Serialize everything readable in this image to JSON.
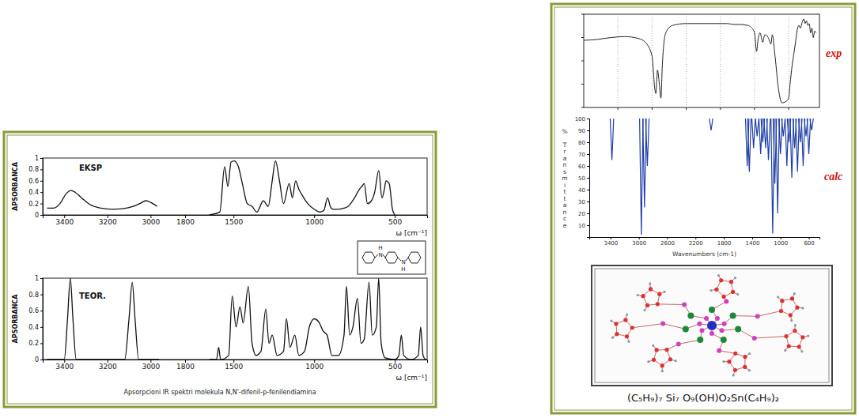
{
  "chart_data": [
    {
      "type": "line",
      "title": "EKSP",
      "x_label": "ω [cm⁻¹]",
      "y_label": "APSORBANCA",
      "xlim": [
        3500,
        300
      ],
      "xbreak": [
        2950,
        1800
      ],
      "xticks": [
        3400,
        3200,
        3000,
        1800,
        1500,
        1000,
        500
      ],
      "ylim": [
        0,
        1
      ],
      "yticks": [
        0,
        0.2,
        0.4,
        0.6,
        0.8,
        1
      ],
      "color": "#111111",
      "x": [
        3480,
        3450,
        3420,
        3390,
        3370,
        3350,
        3320,
        3280,
        3230,
        3180,
        3130,
        3080,
        3050,
        3020,
        3000,
        2970,
        2400,
        1650,
        1585,
        1555,
        1535,
        1515,
        1495,
        1470,
        1445,
        1415,
        1385,
        1355,
        1315,
        1285,
        1260,
        1240,
        1215,
        1190,
        1155,
        1135,
        1115,
        1095,
        1075,
        1040,
        1000,
        965,
        940,
        917,
        900,
        885,
        850,
        815,
        790,
        750,
        720,
        705,
        690,
        670,
        645,
        625,
        600,
        580,
        565,
        555,
        535,
        515,
        500
      ],
      "values": [
        0.12,
        0.12,
        0.2,
        0.38,
        0.43,
        0.4,
        0.3,
        0.18,
        0.12,
        0.1,
        0.11,
        0.15,
        0.2,
        0.25,
        0.22,
        0.15,
        null,
        0,
        0.05,
        0.85,
        0.5,
        0.93,
        0.95,
        0.85,
        0.55,
        0.2,
        0.15,
        0.05,
        0.25,
        0.15,
        0.6,
        0.95,
        0.6,
        0.2,
        0.55,
        0.3,
        0.6,
        0.45,
        0.35,
        0.2,
        0.1,
        0.05,
        0.08,
        0.3,
        0.15,
        0.1,
        0.1,
        0.12,
        0.15,
        0.3,
        0.45,
        0.5,
        0.55,
        0.2,
        0.25,
        0.4,
        0.78,
        0.3,
        0.45,
        0.6,
        0.55,
        0.1,
        0
      ]
    },
    {
      "type": "line",
      "title": "TEOR.",
      "x_label": "ω [cm⁻¹]",
      "y_label": "APSORBANCA",
      "xlim": [
        3500,
        300
      ],
      "xbreak": [
        2950,
        1800
      ],
      "xticks": [
        3400,
        3200,
        3000,
        1800,
        1500,
        1000,
        500
      ],
      "ylim": [
        0,
        1
      ],
      "yticks": [
        0,
        0.2,
        0.4,
        0.6,
        0.8,
        1
      ],
      "color": "#111111",
      "x": [
        3480,
        3400,
        3385,
        3372,
        3360,
        3345,
        3120,
        3100,
        3085,
        3072,
        3055,
        2960,
        2400,
        1650,
        1605,
        1592,
        1580,
        1530,
        1508,
        1484,
        1460,
        1440,
        1408,
        1385,
        1360,
        1330,
        1300,
        1280,
        1260,
        1230,
        1190,
        1172,
        1150,
        1120,
        1095,
        1060,
        1030,
        1000,
        968,
        945,
        920,
        890,
        850,
        815,
        800,
        780,
        760,
        732,
        710,
        690,
        660,
        640,
        615,
        600,
        585,
        560,
        500,
        475,
        460,
        445,
        400,
        355,
        340,
        325,
        310
      ],
      "values": [
        0,
        0,
        0.5,
        1,
        0.5,
        0,
        0,
        0.5,
        0.95,
        0.5,
        0,
        0,
        null,
        0,
        0,
        0.15,
        0,
        0.05,
        0.78,
        0.4,
        0.65,
        0.45,
        0.9,
        0.2,
        0.05,
        0.1,
        0.62,
        0.2,
        0.3,
        0.05,
        0.1,
        0.5,
        0.15,
        0.3,
        0.05,
        0.1,
        0.4,
        0.5,
        0.45,
        0.35,
        0.3,
        0.05,
        0.05,
        0.3,
        0.9,
        0.3,
        0.4,
        0.75,
        0.2,
        0.25,
        0.95,
        0.3,
        0.4,
        1,
        0.2,
        0.02,
        0,
        0.05,
        0.3,
        0.05,
        0,
        0.05,
        0.4,
        0.05,
        0
      ]
    },
    {
      "type": "line",
      "title": "exp",
      "xlim": [
        4000,
        550
      ],
      "xticks": [
        3500,
        3000,
        2500,
        2000,
        1500,
        1000
      ],
      "ylim": [
        0,
        100
      ],
      "yticks": [
        0,
        25,
        50,
        75,
        100
      ],
      "grid": true,
      "tick_labels": false,
      "color": "#222222",
      "x": [
        4000,
        3800,
        3600,
        3400,
        3200,
        3100,
        3000,
        2960,
        2945,
        2920,
        2900,
        2870,
        2850,
        2800,
        2700,
        2500,
        2200,
        2000,
        1900,
        1800,
        1700,
        1600,
        1550,
        1500,
        1470,
        1450,
        1420,
        1380,
        1350,
        1300,
        1260,
        1240,
        1200,
        1150,
        1120,
        1100,
        1050,
        1000,
        980,
        950,
        920,
        900,
        870,
        850,
        830,
        800,
        780,
        760,
        740,
        720,
        700,
        680,
        660,
        640,
        620,
        600
      ],
      "values": [
        72,
        73,
        75,
        76,
        74,
        70,
        55,
        20,
        15,
        40,
        30,
        10,
        45,
        80,
        88,
        90,
        90,
        90,
        90,
        89,
        89,
        88,
        86,
        80,
        60,
        72,
        80,
        70,
        78,
        75,
        68,
        78,
        55,
        20,
        8,
        5,
        6,
        10,
        25,
        45,
        60,
        70,
        85,
        88,
        85,
        92,
        95,
        90,
        93,
        88,
        90,
        80,
        85,
        75,
        82,
        80
      ]
    },
    {
      "type": "stick",
      "title": "calc",
      "x_label": "Wavenumbers (cm-1)",
      "y_label": "% Transmittance",
      "xlim": [
        3700,
        450
      ],
      "xticks": [
        3400,
        3000,
        2600,
        2200,
        1800,
        1400,
        1000,
        600
      ],
      "ylim": [
        0,
        100
      ],
      "yticks": [
        10,
        20,
        30,
        40,
        50,
        60,
        70,
        80,
        90,
        100
      ],
      "color": "#1f3fa8",
      "x": [
        3380,
        2965,
        2920,
        2880,
        1980,
        1470,
        1440,
        1380,
        1330,
        1280,
        1250,
        1210,
        1170,
        1110,
        1080,
        1040,
        1000,
        960,
        910,
        880,
        840,
        800,
        760,
        720,
        680,
        640,
        600,
        560
      ],
      "values": [
        65,
        2,
        25,
        60,
        90,
        60,
        55,
        75,
        85,
        70,
        80,
        75,
        65,
        3,
        45,
        20,
        70,
        85,
        60,
        80,
        50,
        75,
        55,
        80,
        60,
        85,
        70,
        90
      ]
    }
  ],
  "left_panel": {
    "caption": "Apsorpcioni IR spektri molekula N,N'-difenil-p-fenilendiamina",
    "structure_labels": [
      "H",
      "N",
      "N",
      "H"
    ]
  },
  "right_panel": {
    "caption": "(C₅H₉)₇ Si₇ O₉(OH)O₂Sn(C₄H₉)₂"
  }
}
